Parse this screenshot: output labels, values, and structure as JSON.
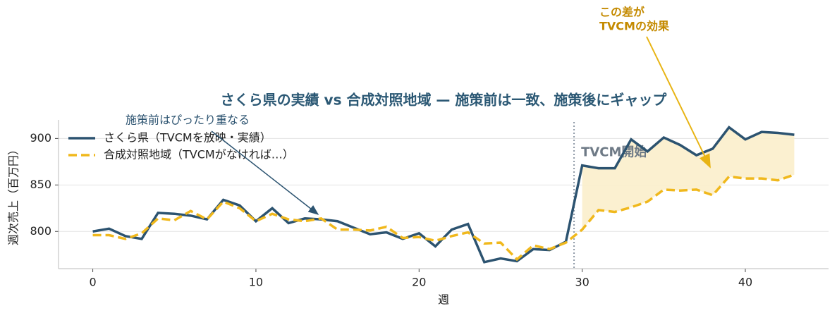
{
  "chart_data": {
    "type": "line",
    "title": "さくら県の実績 vs 合成対照地域 — 施策前は一致、施策後にギャップ",
    "x_label": "週",
    "y_label": "週次売上（百万円）",
    "x": [
      0,
      1,
      2,
      3,
      4,
      5,
      6,
      7,
      8,
      9,
      10,
      11,
      12,
      13,
      14,
      15,
      16,
      17,
      18,
      19,
      20,
      21,
      22,
      23,
      24,
      25,
      26,
      27,
      28,
      29,
      30,
      31,
      32,
      33,
      34,
      35,
      36,
      37,
      38,
      39,
      40,
      41,
      42,
      43
    ],
    "series": [
      {
        "name": "さくら県（TVCMを放映・実績）",
        "color": "#2c5370",
        "dash": false,
        "values": [
          800,
          803,
          795,
          792,
          820,
          819,
          817,
          813,
          834,
          828,
          811,
          825,
          809,
          814,
          813,
          811,
          804,
          797,
          799,
          792,
          798,
          784,
          802,
          808,
          767,
          771,
          768,
          781,
          780,
          789,
          871,
          868,
          868,
          899,
          886,
          901,
          893,
          882,
          889,
          912,
          899,
          907,
          906,
          904
        ]
      },
      {
        "name": "合成対照地域（TVCMがなければ…）",
        "color": "#f0b81c",
        "dash": true,
        "values": [
          796,
          796,
          792,
          798,
          814,
          812,
          822,
          813,
          832,
          825,
          811,
          819,
          813,
          811,
          814,
          802,
          802,
          801,
          805,
          793,
          794,
          790,
          795,
          799,
          787,
          788,
          770,
          785,
          781,
          788,
          802,
          823,
          821,
          826,
          832,
          845,
          844,
          845,
          839,
          859,
          857,
          857,
          855,
          861
        ]
      }
    ],
    "fill_color": "#fbeecb",
    "intervention": {
      "x": 29.5,
      "label": "TVCM開始"
    },
    "annotations": [
      {
        "lines": [
          "施策前はぴったり重なる"
        ],
        "color": "#2c5370"
      },
      {
        "lines": [
          "この差が",
          "TVCMの効果"
        ],
        "color": "#c48a00"
      }
    ],
    "xlim": [
      -2.1,
      45.1
    ],
    "xticks": [
      0,
      10,
      20,
      30,
      40
    ],
    "ylim": [
      760,
      920
    ],
    "yticks": [
      800,
      850,
      900
    ],
    "grid": true,
    "legend": "upper left"
  }
}
